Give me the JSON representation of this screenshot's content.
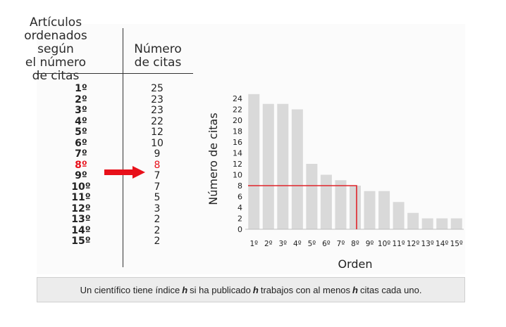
{
  "table": {
    "header_left": [
      "Artículos",
      "ordenados según",
      "el número",
      "de citas"
    ],
    "header_right": [
      "Número",
      "de citas"
    ],
    "highlight_index": 7,
    "rows": [
      {
        "orden": "1º",
        "citas": "25"
      },
      {
        "orden": "2º",
        "citas": "23"
      },
      {
        "orden": "3º",
        "citas": "23"
      },
      {
        "orden": "4º",
        "citas": "22"
      },
      {
        "orden": "5º",
        "citas": "12"
      },
      {
        "orden": "6º",
        "citas": "10"
      },
      {
        "orden": "7º",
        "citas": "9"
      },
      {
        "orden": "8º",
        "citas": "8"
      },
      {
        "orden": "9º",
        "citas": "7"
      },
      {
        "orden": "10º",
        "citas": "7"
      },
      {
        "orden": "11º",
        "citas": "5"
      },
      {
        "orden": "12º",
        "citas": "3"
      },
      {
        "orden": "13º",
        "citas": "2"
      },
      {
        "orden": "14º",
        "citas": "2"
      },
      {
        "orden": "15º",
        "citas": "2"
      }
    ]
  },
  "colors": {
    "highlight": "#e8101a",
    "bar": "#d9d9d9",
    "hline": "#e0242a"
  },
  "chart_data": {
    "type": "bar",
    "categories": [
      "1º",
      "2º",
      "3º",
      "4º",
      "5º",
      "6º",
      "7º",
      "8º",
      "9º",
      "10º",
      "11º",
      "12º",
      "13º",
      "14º",
      "15º"
    ],
    "values": [
      25,
      23,
      23,
      22,
      12,
      10,
      9,
      8,
      7,
      7,
      5,
      3,
      2,
      2,
      2
    ],
    "xlabel": "Orden",
    "ylabel": "Número de citas",
    "ylim": [
      0,
      24
    ],
    "yticks": [
      0,
      2,
      4,
      6,
      8,
      10,
      12,
      14,
      16,
      18,
      20,
      22,
      24
    ],
    "h_index": 8,
    "grid": false
  },
  "caption": {
    "parts": [
      {
        "text": "Un científico tiene índice",
        "em": false
      },
      {
        "text": "h",
        "em": true
      },
      {
        "text": "si ha publicado",
        "em": false
      },
      {
        "text": "h",
        "em": true
      },
      {
        "text": "trabajos con al menos",
        "em": false
      },
      {
        "text": "h",
        "em": true
      },
      {
        "text": "citas cada uno.",
        "em": false
      }
    ]
  }
}
